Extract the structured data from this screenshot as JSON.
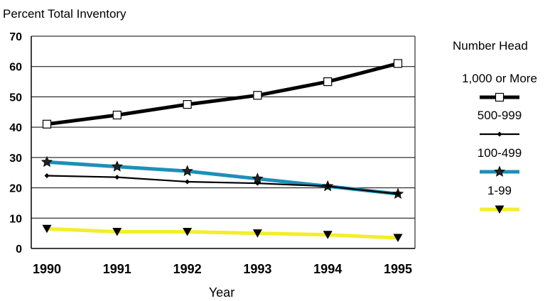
{
  "chart_data": {
    "type": "line",
    "title": "",
    "ylabel": "Percent Total Inventory",
    "xlabel": "Year",
    "ylim": [
      0,
      70
    ],
    "yticks": [
      "0",
      "10",
      "20",
      "30",
      "40",
      "50",
      "60",
      "70"
    ],
    "x": [
      "1990",
      "1991",
      "1992",
      "1993",
      "1994",
      "1995"
    ],
    "grid": true,
    "legend_title": "Number Head",
    "legend_placement": "right",
    "series": [
      {
        "name": "1,000 or More",
        "color": "#000000",
        "marker": "square-open",
        "values": [
          41,
          44,
          47.5,
          50.5,
          55,
          61
        ]
      },
      {
        "name": "500-999",
        "color": "#000000",
        "marker": "diamond",
        "values": [
          24,
          23.5,
          22,
          21.5,
          20.5,
          18
        ]
      },
      {
        "name": "100-499",
        "color": "#1e8fb8",
        "marker": "star",
        "values": [
          28.5,
          27,
          25.5,
          23,
          20.5,
          18
        ]
      },
      {
        "name": "1-99",
        "color": "#f2ee2a",
        "marker": "triangle-down",
        "values": [
          6.5,
          5.5,
          5.5,
          5,
          4.5,
          3.5
        ]
      }
    ]
  }
}
